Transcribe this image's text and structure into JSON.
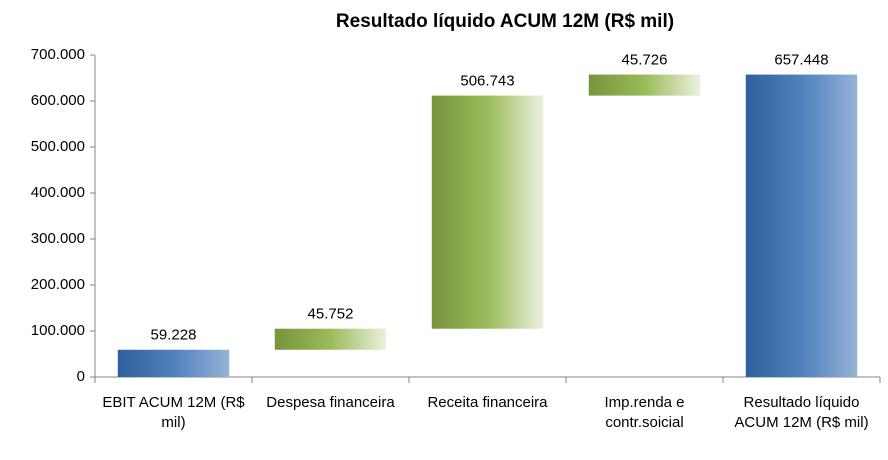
{
  "chart_data": {
    "type": "waterfall",
    "title": "Resultado líquido ACUM 12M (R$ mil)",
    "categories": [
      "EBIT ACUM 12M (R$ mil)",
      "Despesa financeira",
      "Receita financeira",
      "Imp.renda e contr.soicial",
      "Resultado líquido ACUM 12M (R$ mil)"
    ],
    "values": [
      59228,
      45752,
      506743,
      45726,
      657448
    ],
    "value_labels": [
      "59.228",
      "45.752",
      "506.743",
      "45.726",
      "657.448"
    ],
    "totals": [
      true,
      false,
      false,
      false,
      true
    ],
    "total_gradient": [
      "#2f5f9c",
      "#4f81bd",
      "#95b3d7"
    ],
    "step_gradient": [
      "#77933c",
      "#9bbb59",
      "#ebf1de"
    ],
    "ylim": [
      0,
      700000
    ],
    "yticks": [
      0,
      {
        "value": 100000,
        "label": "100.000"
      },
      {
        "value": 200000,
        "label": "200.000"
      },
      {
        "value": 300000,
        "label": "300.000"
      },
      {
        "value": 400000,
        "label": "400.000"
      },
      {
        "value": 500000,
        "label": "500.000"
      },
      {
        "value": 600000,
        "label": "600.000"
      },
      {
        "value": 700000,
        "label": "700.000"
      }
    ],
    "grid": false
  }
}
